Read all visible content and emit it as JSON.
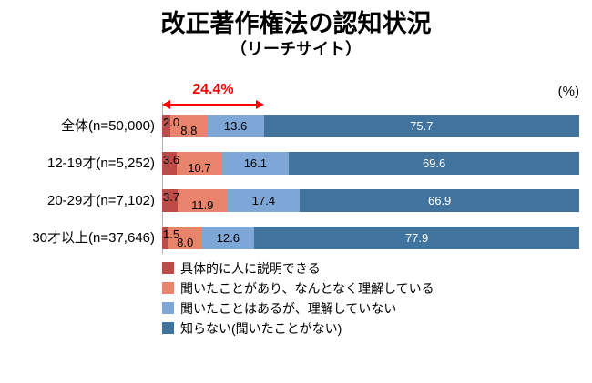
{
  "title": "改正著作権法の認知状況",
  "subtitle": "（リーチサイト）",
  "unit_label": "(%)",
  "annotation": {
    "label": "24.4%",
    "span_percent": 24.4,
    "color": "#ff0000"
  },
  "chart_data": {
    "type": "bar",
    "orientation": "horizontal",
    "stacked": true,
    "grid": false,
    "legend_position": "bottom-left",
    "value_unit": "%",
    "xlim": [
      0,
      100
    ],
    "categories": [
      "全体(n=50,000)",
      "12-19才(n=5,252)",
      "20-29才(n=7,102)",
      "30才以上(n=37,646)"
    ],
    "series": [
      {
        "name": "具体的に人に説明できる",
        "color": "#be4b48",
        "values": [
          2.0,
          3.6,
          3.7,
          1.5
        ],
        "labels": [
          "2.0",
          "3.6",
          "3.7",
          "1.5"
        ]
      },
      {
        "name": "聞いたことがあり、なんとなく理解している",
        "color": "#e8846c",
        "values": [
          8.8,
          10.7,
          11.9,
          8.0
        ],
        "labels": [
          "8.8",
          "10.7",
          "11.9",
          "8.0"
        ]
      },
      {
        "name": "聞いたことはあるが、理解していない",
        "color": "#7ea7d8",
        "values": [
          13.6,
          16.1,
          17.4,
          12.6
        ],
        "labels": [
          "13.6",
          "16.1",
          "17.4",
          "12.6"
        ]
      },
      {
        "name": "知らない(聞いたことがない)",
        "color": "#40739e",
        "values": [
          75.7,
          69.6,
          66.9,
          77.9
        ],
        "labels": [
          "75.7",
          "69.6",
          "66.9",
          "77.9"
        ]
      }
    ]
  }
}
